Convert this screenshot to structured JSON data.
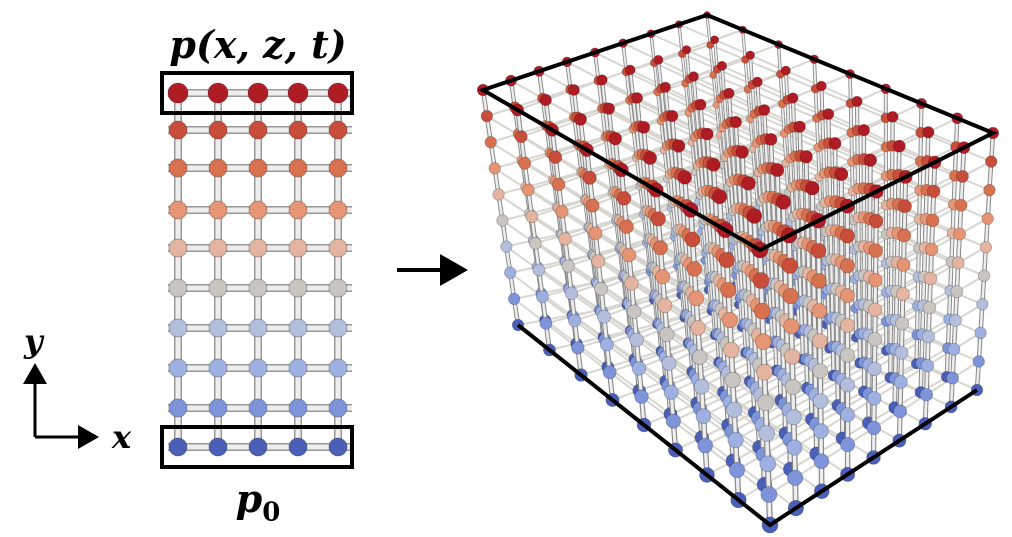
{
  "top_label": "p(x, z, t)",
  "bottom_label": {
    "base": "p",
    "subscript": "0"
  },
  "axes": {
    "y": "y",
    "x": "x"
  }
}
